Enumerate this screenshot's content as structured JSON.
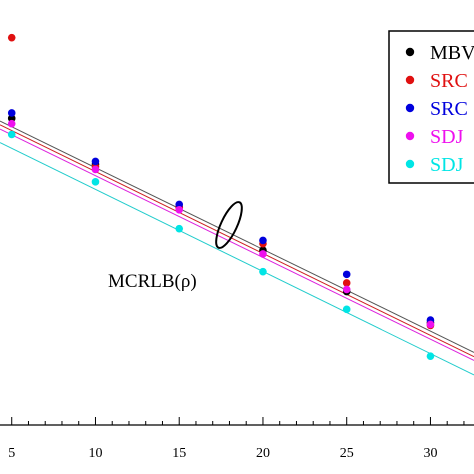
{
  "chart_data": {
    "type": "scatter",
    "title": "",
    "xlabel": "",
    "ylabel": "",
    "xlim": [
      4.3,
      32.6
    ],
    "ylim": [
      -7.2,
      0.7
    ],
    "x_ticks": [
      5,
      10,
      15,
      20,
      25,
      30
    ],
    "x_tick_labels": [
      "5",
      "10",
      "15",
      "20",
      "25",
      "30"
    ],
    "grid": false,
    "legend_position": "top-right",
    "series": [
      {
        "name": "MBV",
        "color": "#000000",
        "x": [
          5,
          10,
          15,
          20,
          25,
          30
        ],
        "y": [
          -1.5,
          -2.35,
          -3.15,
          -3.95,
          -4.72,
          -5.3
        ]
      },
      {
        "name": "SRC",
        "color": "#e01010",
        "x": [
          5,
          10,
          15,
          20,
          25,
          30
        ],
        "y": [
          0.0,
          -2.4,
          -3.15,
          -3.83,
          -4.56,
          -5.35
        ]
      },
      {
        "name": "SRC",
        "color": "#0000dd",
        "x": [
          5,
          10,
          15,
          20,
          25,
          30
        ],
        "y": [
          -1.4,
          -2.3,
          -3.1,
          -3.77,
          -4.4,
          -5.25
        ]
      },
      {
        "name": "SDJ",
        "color": "#ee10ee",
        "x": [
          5,
          10,
          15,
          20,
          25,
          30
        ],
        "y": [
          -1.6,
          -2.45,
          -3.2,
          -4.02,
          -4.68,
          -5.33
        ]
      },
      {
        "name": "SDJ",
        "color": "#00e5e5",
        "x": [
          5,
          10,
          15,
          20,
          25,
          30
        ],
        "y": [
          -1.8,
          -2.68,
          -3.55,
          -4.35,
          -5.05,
          -5.92
        ]
      }
    ],
    "bound_lines": [
      {
        "color": "#555555",
        "x": [
          4.3,
          32.6
        ],
        "y": [
          -1.55,
          -5.85
        ]
      },
      {
        "color": "#cc2222",
        "x": [
          4.3,
          32.6
        ],
        "y": [
          -1.62,
          -5.93
        ]
      },
      {
        "color": "#dd22dd",
        "x": [
          4.3,
          32.6
        ],
        "y": [
          -1.7,
          -6.0
        ]
      },
      {
        "color": "#22cccc",
        "x": [
          4.3,
          32.6
        ],
        "y": [
          -1.95,
          -6.27
        ]
      }
    ],
    "annotation": {
      "text": "MCRLB(ρ)",
      "x": 17.5,
      "y": -3.95
    }
  }
}
